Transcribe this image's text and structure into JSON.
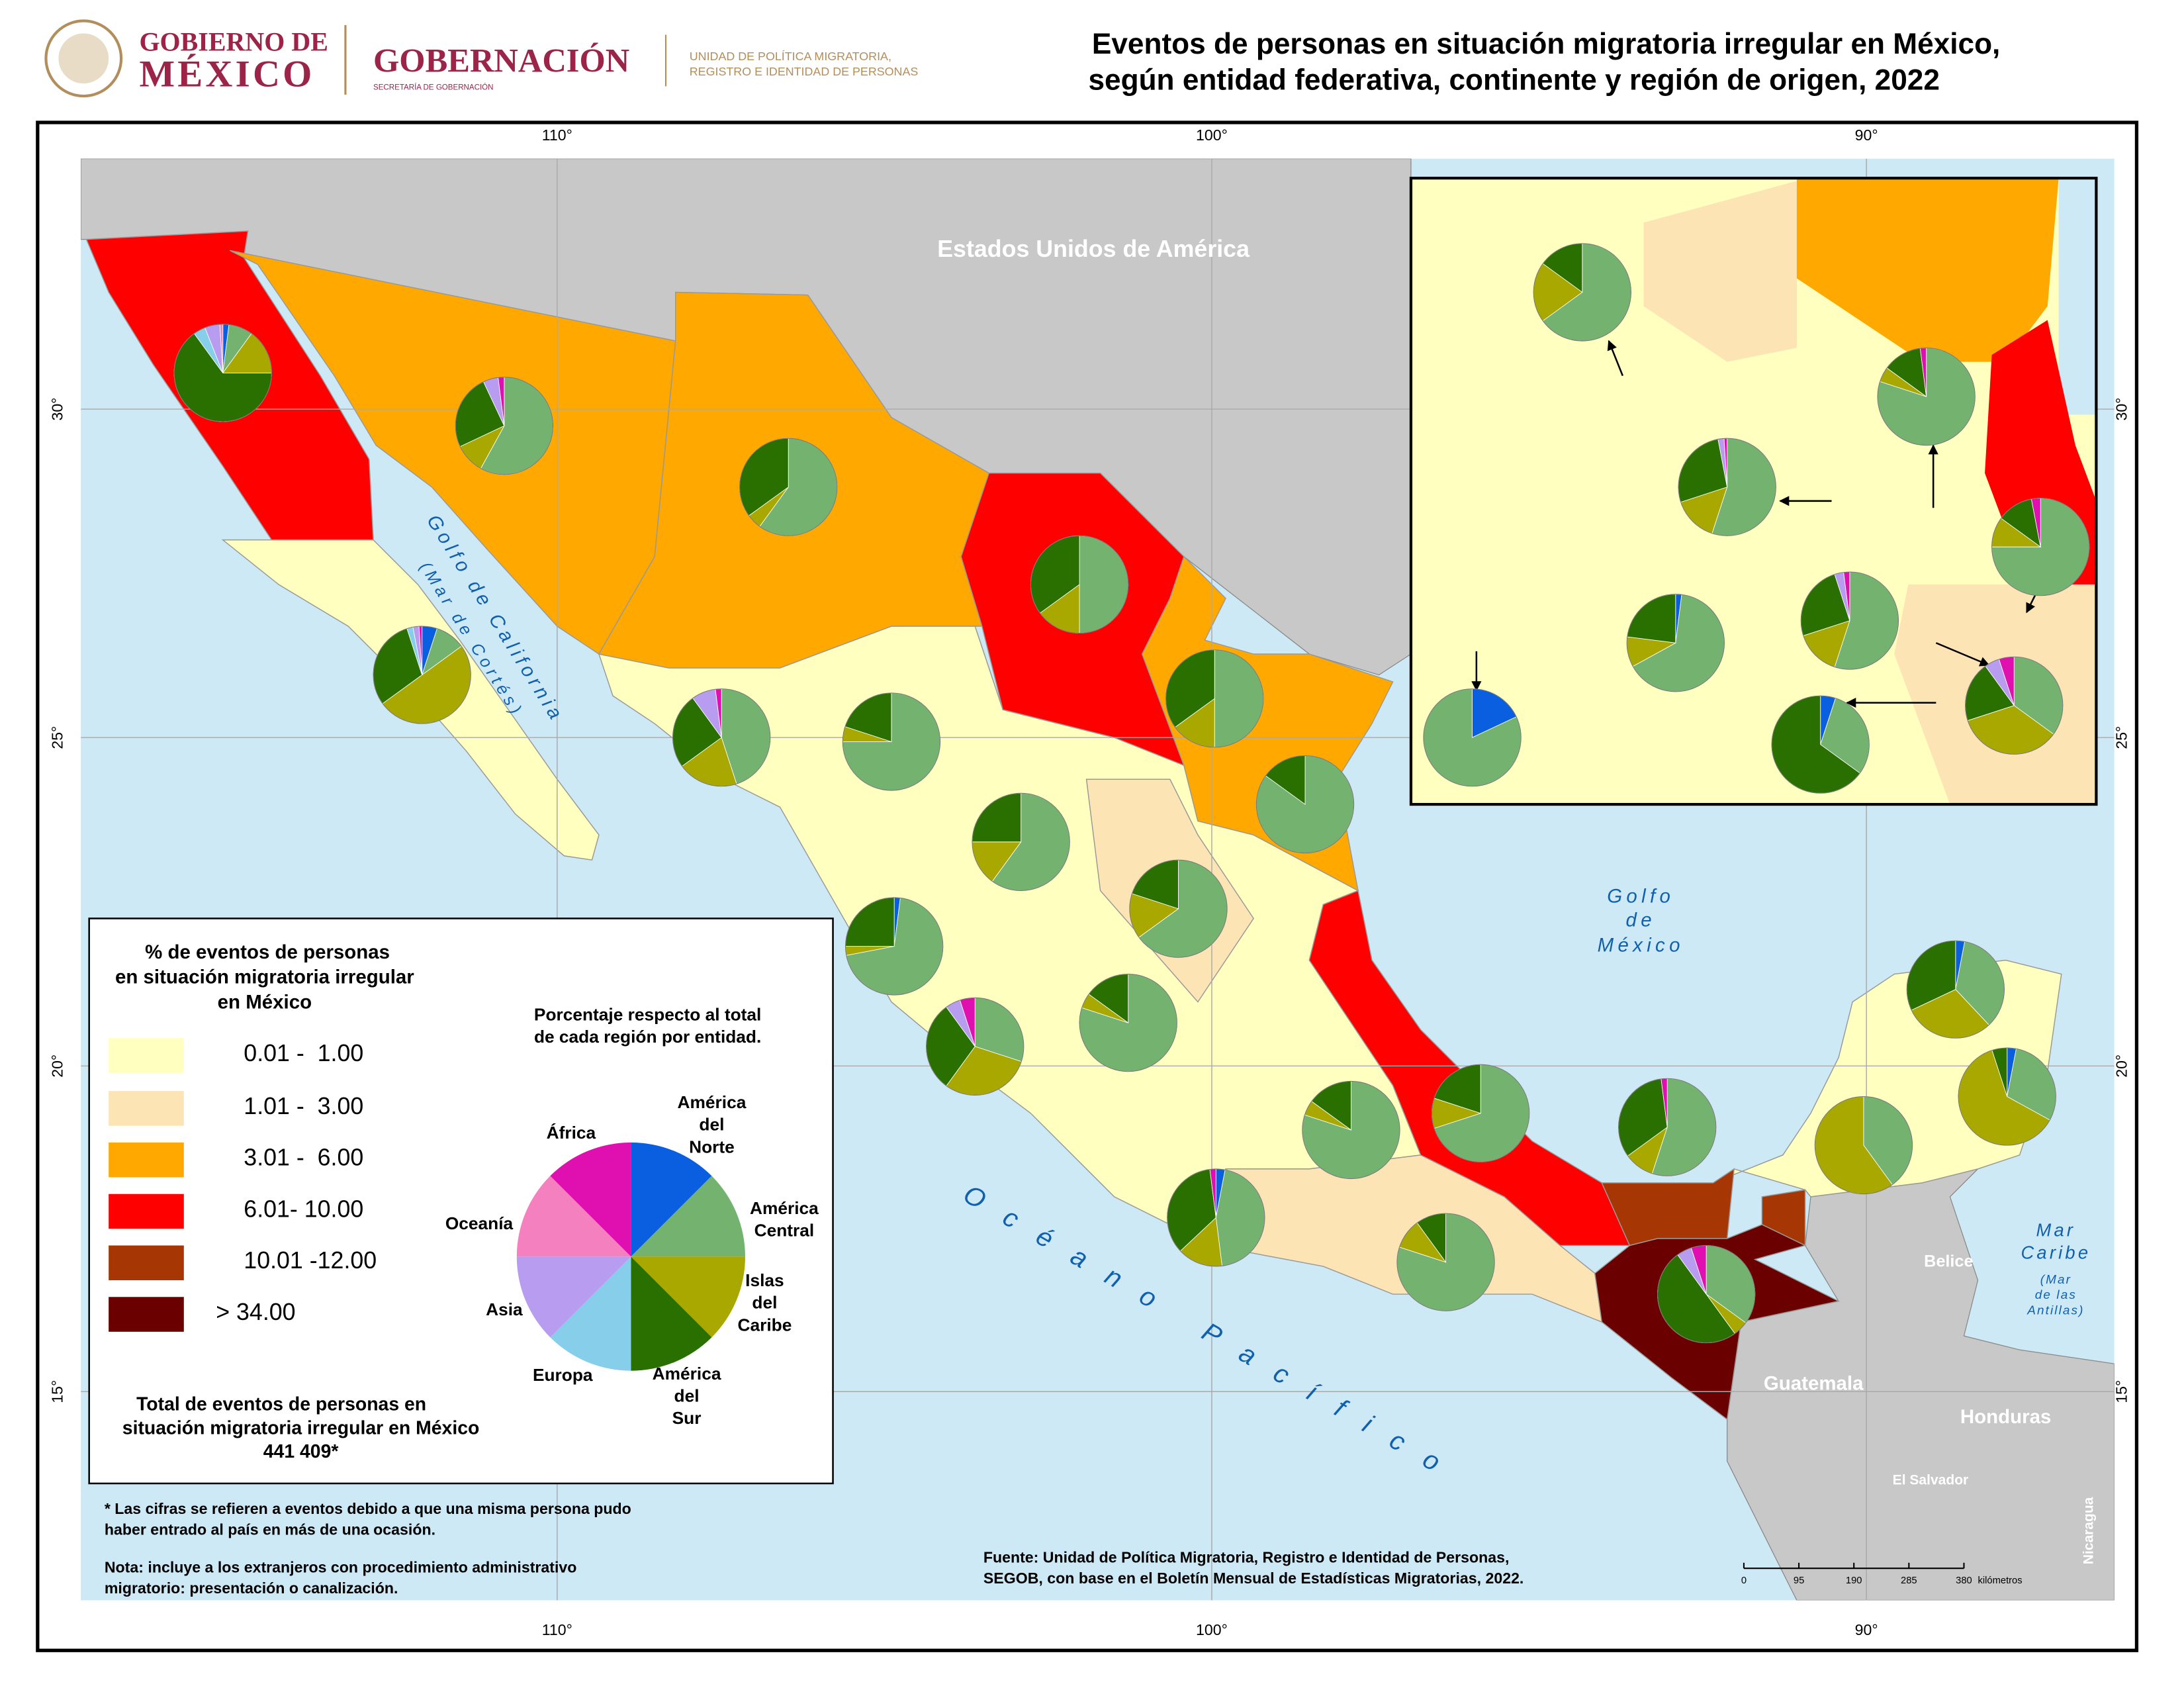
{
  "header": {
    "logo1_top": "GOBIERNO DE",
    "logo1_bottom": "MÉXICO",
    "logo2_title": "GOBERNACIÓN",
    "logo2_sub": "SECRETARÍA DE GOBERNACIÓN",
    "logo3": [
      "UNIDAD DE POLÍTICA MIGRATORIA,",
      "REGISTRO E IDENTIDAD DE PERSONAS"
    ],
    "title": [
      "Eventos de personas en situación migratoria irregular en México,",
      "según entidad federativa, continente y región de origen, 2022"
    ]
  },
  "map": {
    "longitudes": [
      "110°",
      "100°",
      "90°"
    ],
    "latitudes": [
      "30°",
      "25°",
      "20°",
      "15°"
    ],
    "labels": {
      "usa": "Estados Unidos de América",
      "gulf_ca": "Golfo de California",
      "gulf_ca_alt": "(Mar de Cortés)",
      "gulf_mx": [
        "Golfo",
        "de",
        "México"
      ],
      "pacific": "Océano Pacífico",
      "caribbean": [
        "Mar",
        "Caribe"
      ],
      "caribbean_alt": [
        "(Mar",
        "de las",
        "Antillas)"
      ],
      "belize": "Belice",
      "guatemala": "Guatemala",
      "honduras": "Honduras",
      "salvador": "El Salvador",
      "nicaragua": "Nicaragua"
    }
  },
  "legend": {
    "title": [
      "% de eventos de personas",
      "en situación migratoria irregular",
      "en México"
    ],
    "classes": [
      {
        "label": "0.01 -  1.00",
        "color": "#ffffc0"
      },
      {
        "label": "1.01 -  3.00",
        "color": "#fde4b5"
      },
      {
        "label": "3.01 -  6.00",
        "color": "#ffa800"
      },
      {
        "label": "6.01- 10.00",
        "color": "#ff0000"
      },
      {
        "label": "10.01 -12.00",
        "color": "#a63603"
      },
      {
        "label": "> 34.00",
        "color": "#6b0000"
      }
    ],
    "pie_note": [
      "Porcentaje respecto al total",
      "de cada región por entidad."
    ],
    "regions": [
      {
        "name": [
          "América",
          "del",
          "Norte"
        ],
        "color": "#0a5fe0"
      },
      {
        "name": [
          "América",
          "Central"
        ],
        "color": "#74b36f"
      },
      {
        "name": [
          "Islas",
          "del",
          "Caribe"
        ],
        "color": "#a8a800"
      },
      {
        "name": [
          "América",
          "del",
          "Sur"
        ],
        "color": "#2a7000"
      },
      {
        "name": [
          "Europa"
        ],
        "color": "#87ceeb"
      },
      {
        "name": [
          "Asia"
        ],
        "color": "#b89cf0"
      },
      {
        "name": [
          "Oceanía"
        ],
        "color": "#f580c0"
      },
      {
        "name": [
          "África"
        ],
        "color": "#e010b0"
      }
    ],
    "total_text": [
      "Total de eventos de personas en",
      "situación migratoria irregular en México"
    ],
    "total": "441 409*"
  },
  "pies": [
    {
      "values": [
        2,
        8,
        15,
        65,
        4,
        5,
        1,
        0
      ]
    },
    {
      "values": [
        0,
        58,
        10,
        25,
        0,
        5,
        0,
        2
      ]
    },
    {
      "values": [
        0,
        60,
        5,
        35,
        0,
        0,
        0,
        0
      ]
    },
    {
      "values": [
        0,
        50,
        15,
        35,
        0,
        0,
        0,
        0
      ]
    },
    {
      "values": [
        5,
        10,
        50,
        30,
        2,
        2,
        0,
        1
      ]
    },
    {
      "values": [
        0,
        45,
        20,
        25,
        0,
        8,
        0,
        2
      ]
    },
    {
      "values": [
        0,
        75,
        5,
        20,
        0,
        0,
        0,
        0
      ]
    },
    {
      "values": [
        0,
        50,
        15,
        35,
        0,
        0,
        0,
        0
      ]
    },
    {
      "values": [
        0,
        85,
        0,
        15,
        0,
        0,
        0,
        0
      ]
    },
    {
      "values": [
        0,
        60,
        15,
        25,
        0,
        0,
        0,
        0
      ]
    },
    {
      "values": [
        0,
        65,
        15,
        20,
        0,
        0,
        0,
        0
      ]
    },
    {
      "values": [
        2,
        70,
        3,
        25,
        0,
        0,
        0,
        0
      ]
    },
    {
      "values": [
        0,
        30,
        30,
        30,
        0,
        5,
        0,
        5
      ]
    },
    {
      "values": [
        0,
        80,
        5,
        15,
        0,
        0,
        0,
        0
      ]
    },
    {
      "values": [
        0,
        80,
        5,
        15,
        0,
        0,
        0,
        0
      ]
    },
    {
      "values": [
        0,
        70,
        10,
        20,
        0,
        0,
        0,
        0
      ]
    },
    {
      "values": [
        3,
        45,
        15,
        35,
        0,
        0,
        0,
        2
      ]
    },
    {
      "values": [
        0,
        80,
        10,
        10,
        0,
        0,
        0,
        0
      ]
    },
    {
      "values": [
        0,
        55,
        10,
        33,
        0,
        0,
        0,
        2
      ]
    },
    {
      "values": [
        0,
        35,
        5,
        50,
        0,
        5,
        0,
        5
      ]
    },
    {
      "values": [
        0,
        40,
        60,
        0,
        0,
        0,
        0,
        0
      ]
    },
    {
      "values": [
        3,
        35,
        30,
        32,
        0,
        0,
        0,
        0
      ]
    },
    {
      "values": [
        3,
        30,
        62,
        5,
        0,
        0,
        0,
        0
      ]
    },
    {
      "values": [
        0,
        65,
        20,
        15,
        0,
        0,
        0,
        0
      ]
    },
    {
      "values": [
        0,
        80,
        5,
        13,
        0,
        0,
        0,
        2
      ]
    },
    {
      "values": [
        0,
        55,
        15,
        27,
        0,
        2,
        0,
        1
      ]
    },
    {
      "values": [
        0,
        75,
        10,
        12,
        0,
        0,
        0,
        3
      ]
    },
    {
      "values": [
        2,
        65,
        10,
        23,
        0,
        0,
        0,
        0
      ]
    },
    {
      "values": [
        0,
        55,
        15,
        25,
        0,
        3,
        0,
        2
      ]
    },
    {
      "values": [
        0,
        35,
        35,
        20,
        0,
        5,
        0,
        5
      ]
    },
    {
      "values": [
        18,
        82,
        0,
        0,
        0,
        0,
        0,
        0
      ]
    },
    {
      "values": [
        5,
        30,
        0,
        65,
        0,
        0,
        0,
        0
      ]
    }
  ],
  "notes": [
    [
      "* Las cifras se refieren a eventos debido a que una misma persona pudo",
      "haber entrado al país en más de una ocasión."
    ],
    [
      "Nota: incluye a los extranjeros con procedimiento administrativo",
      "migratorio: presentación o canalización."
    ]
  ],
  "source": [
    "Fuente: Unidad de Política Migratoria, Registro e Identidad de Personas,",
    "SEGOB, con base en el Boletín Mensual de Estadísticas Migratorias, 2022."
  ],
  "scale": {
    "ticks": [
      0,
      95,
      190,
      285,
      380
    ],
    "unit": "kilómetros"
  }
}
